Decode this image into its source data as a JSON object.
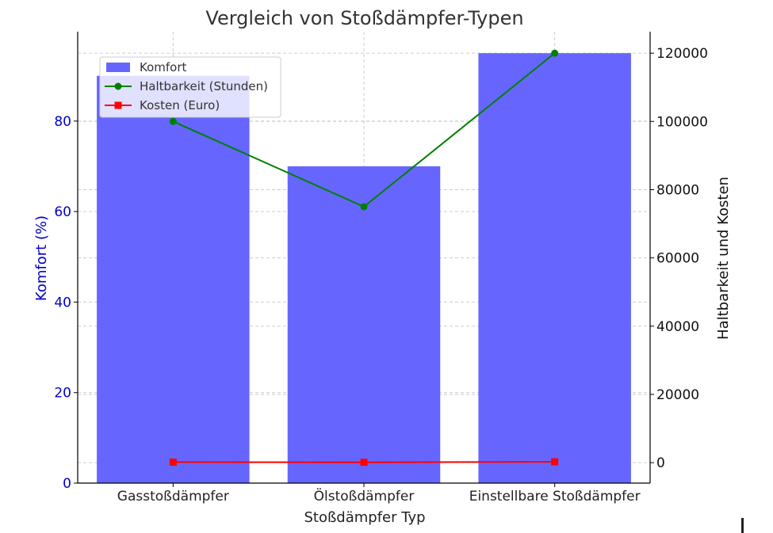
{
  "chart_data": {
    "type": "bar",
    "title": "Vergleich von Stoßdämpfer-Typen",
    "xlabel": "Stoßdämpfer Typ",
    "ylabel": "Komfort (%)",
    "y2label": "Haltbarkeit und Kosten",
    "categories": [
      "Gasstoßdämpfer",
      "Ölstoßdämpfer",
      "Einstellbare Stoßdämpfer"
    ],
    "series": [
      {
        "name": "Komfort",
        "type": "bar",
        "axis": "left",
        "values": [
          90,
          70,
          95
        ],
        "color": "#6666ff"
      },
      {
        "name": "Haltbarkeit (Stunden)",
        "type": "line",
        "axis": "right",
        "values": [
          100000,
          75000,
          120000
        ],
        "color": "#008000",
        "marker": "circle"
      },
      {
        "name": "Kosten (Euro)",
        "type": "line",
        "axis": "right",
        "values": [
          150,
          100,
          250
        ],
        "color": "#ff0000",
        "marker": "square"
      }
    ],
    "ylim": [
      0,
      99.75
    ],
    "y2lim": [
      -6000,
      126300
    ],
    "yticks": [
      0,
      20,
      40,
      60,
      80
    ],
    "y2ticks": [
      0,
      20000,
      40000,
      60000,
      80000,
      100000,
      120000
    ],
    "left_axis_color": "#0000cc",
    "grid": true,
    "legend_position": "upper-left"
  }
}
